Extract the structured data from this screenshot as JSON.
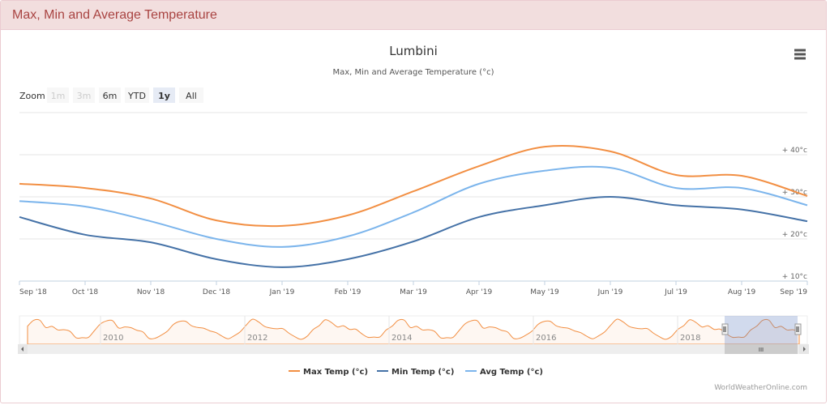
{
  "panel": {
    "title": "Max, Min and Average Temperature"
  },
  "chart_data": {
    "type": "line",
    "title": "Lumbini",
    "subtitle": "Max, Min and Average Temperature (°c)",
    "x": [
      "Sep '18",
      "Oct '18",
      "Nov '18",
      "Dec '18",
      "Jan '19",
      "Feb '19",
      "Mar '19",
      "Apr '19",
      "May '19",
      "Jun '19",
      "Jul '19",
      "Aug '19",
      "Sep '19"
    ],
    "ylim": [
      10,
      50
    ],
    "yticks": [
      10,
      20,
      30,
      40
    ],
    "ytick_labels": [
      "+ 10°c",
      "+ 20°c",
      "+ 30°c",
      "+ 40°c"
    ],
    "grid": true,
    "legend_position": "bottom-center",
    "series": [
      {
        "name": "Max Temp (°c)",
        "color": "#f28f43",
        "values": [
          33.1,
          32.1,
          29.6,
          24.4,
          23.1,
          25.6,
          31.3,
          37.3,
          41.9,
          40.8,
          35.2,
          35.0,
          30.2
        ]
      },
      {
        "name": "Min Temp (°c)",
        "color": "#4572a7",
        "values": [
          25.2,
          21.0,
          19.2,
          15.2,
          13.3,
          15.2,
          19.4,
          25.2,
          28.0,
          30.0,
          28.0,
          27.0,
          24.2
        ]
      },
      {
        "name": "Avg Temp (°c)",
        "color": "#7cb5ec",
        "values": [
          29.0,
          27.7,
          24.2,
          20.0,
          18.1,
          20.6,
          26.3,
          33.1,
          36.2,
          36.9,
          32.1,
          32.1,
          28.0
        ]
      }
    ]
  },
  "zoom": {
    "label": "Zoom",
    "buttons": [
      {
        "label": "1m",
        "state": "disabled"
      },
      {
        "label": "3m",
        "state": "disabled"
      },
      {
        "label": "6m",
        "state": "normal"
      },
      {
        "label": "YTD",
        "state": "normal"
      },
      {
        "label": "1y",
        "state": "selected"
      },
      {
        "label": "All",
        "state": "normal"
      }
    ]
  },
  "navigator": {
    "year_labels": [
      "2010",
      "2012",
      "2014",
      "2016",
      "2018"
    ],
    "year_pattern": [
      23,
      25,
      31,
      37,
      42,
      41,
      35,
      35,
      33,
      32,
      29,
      24
    ],
    "selected_range_fraction": [
      0.92,
      1.0
    ]
  },
  "credit": "WorldWeatherOnline.com",
  "scrollbar": {
    "grip": "III"
  }
}
